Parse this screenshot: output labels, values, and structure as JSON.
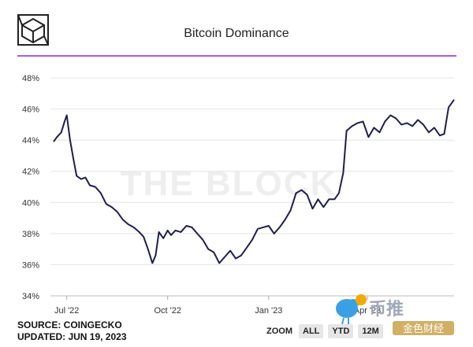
{
  "header": {
    "title": "Bitcoin Dominance",
    "accent_color": "#a35cf2",
    "logo_icon": "cube-icon"
  },
  "watermark": "THE BLOCK",
  "footer": {
    "source": "SOURCE: COINGECKO",
    "updated": "UPDATED: JUN 19, 2023"
  },
  "zoom": {
    "label": "ZOOM",
    "buttons": [
      "ALL",
      "YTD",
      "12M"
    ]
  },
  "overlay": {
    "brand_text": "币推",
    "badge_text": "金色财经"
  },
  "chart_data": {
    "type": "line",
    "title": "Bitcoin Dominance",
    "xlabel": "",
    "ylabel": "",
    "ylim": [
      34,
      48
    ],
    "yticks": [
      "48%",
      "46%",
      "44%",
      "42%",
      "40%",
      "38%",
      "36%",
      "34%"
    ],
    "xticks": [
      "Jul '22",
      "Oct '22",
      "Jan '23",
      "Apr '23"
    ],
    "line_color": "#1f1d4d",
    "grid": "horizontal",
    "series": [
      {
        "name": "",
        "x": [
          "2022-06-19",
          "2022-06-22",
          "2022-06-26",
          "2022-06-29",
          "2022-07-01",
          "2022-07-04",
          "2022-07-07",
          "2022-07-10",
          "2022-07-14",
          "2022-07-18",
          "2022-07-22",
          "2022-07-27",
          "2022-08-01",
          "2022-08-06",
          "2022-08-11",
          "2022-08-16",
          "2022-08-21",
          "2022-08-26",
          "2022-08-31",
          "2022-09-05",
          "2022-09-09",
          "2022-09-13",
          "2022-09-17",
          "2022-09-20",
          "2022-09-23",
          "2022-09-27",
          "2022-10-01",
          "2022-10-04",
          "2022-10-08",
          "2022-10-13",
          "2022-10-18",
          "2022-10-23",
          "2022-10-28",
          "2022-11-02",
          "2022-11-07",
          "2022-11-12",
          "2022-11-17",
          "2022-11-22",
          "2022-11-27",
          "2022-12-02",
          "2022-12-07",
          "2022-12-12",
          "2022-12-17",
          "2022-12-22",
          "2022-12-27",
          "2023-01-01",
          "2023-01-06",
          "2023-01-11",
          "2023-01-16",
          "2023-01-21",
          "2023-01-26",
          "2023-01-31",
          "2023-02-05",
          "2023-02-10",
          "2023-02-15",
          "2023-02-20",
          "2023-02-25",
          "2023-03-02",
          "2023-03-06",
          "2023-03-10",
          "2023-03-13",
          "2023-03-18",
          "2023-03-23",
          "2023-03-28",
          "2023-04-02",
          "2023-04-07",
          "2023-04-12",
          "2023-04-17",
          "2023-04-22",
          "2023-04-27",
          "2023-05-02",
          "2023-05-07",
          "2023-05-12",
          "2023-05-17",
          "2023-05-22",
          "2023-05-27",
          "2023-06-01",
          "2023-06-06",
          "2023-06-10",
          "2023-06-14",
          "2023-06-19"
        ],
        "values": [
          43.9,
          44.2,
          44.5,
          45.2,
          45.6,
          44.0,
          42.8,
          41.7,
          41.5,
          41.6,
          41.1,
          41.0,
          40.6,
          39.9,
          39.7,
          39.4,
          38.9,
          38.6,
          38.4,
          38.1,
          37.8,
          37.0,
          36.1,
          36.6,
          38.1,
          37.7,
          38.2,
          37.9,
          38.2,
          38.1,
          38.5,
          38.4,
          38.0,
          37.6,
          37.0,
          36.8,
          36.1,
          36.5,
          36.9,
          36.4,
          36.6,
          37.1,
          37.6,
          38.3,
          38.4,
          38.5,
          38.0,
          38.4,
          38.9,
          39.5,
          40.6,
          40.8,
          40.5,
          39.6,
          40.2,
          39.7,
          40.2,
          40.2,
          40.6,
          41.9,
          44.6,
          44.9,
          45.1,
          45.2,
          44.2,
          44.8,
          44.5,
          45.2,
          45.6,
          45.4,
          45.0,
          45.1,
          44.9,
          45.3,
          45.0,
          44.5,
          44.8,
          44.3,
          44.4,
          46.1,
          46.6
        ]
      }
    ]
  }
}
